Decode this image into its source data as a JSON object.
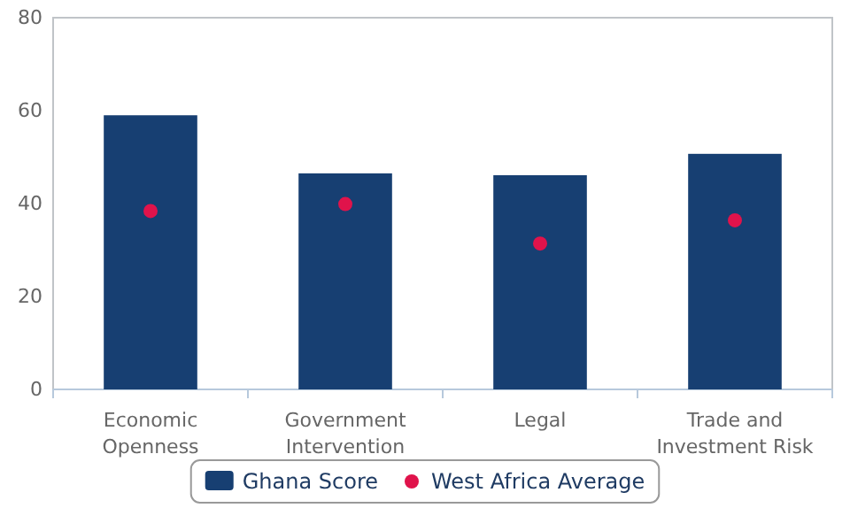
{
  "chart_data": {
    "type": "bar",
    "categories": [
      "Economic Openness",
      "Government Intervention",
      "Legal",
      "Trade and Investment Risk"
    ],
    "series": [
      {
        "name": "Ghana Score",
        "color": "#173f72",
        "values": [
          59.0,
          46.5,
          46.1,
          50.7
        ]
      },
      {
        "name": "West Africa Average",
        "type": "scatter",
        "color": "#e0134b",
        "values": [
          38.4,
          39.9,
          31.4,
          36.4
        ]
      }
    ],
    "ylim": [
      0,
      80
    ],
    "yticks": [
      0,
      20,
      40,
      60,
      80
    ],
    "grid": false,
    "legend": "bottom",
    "marker": "circle"
  }
}
